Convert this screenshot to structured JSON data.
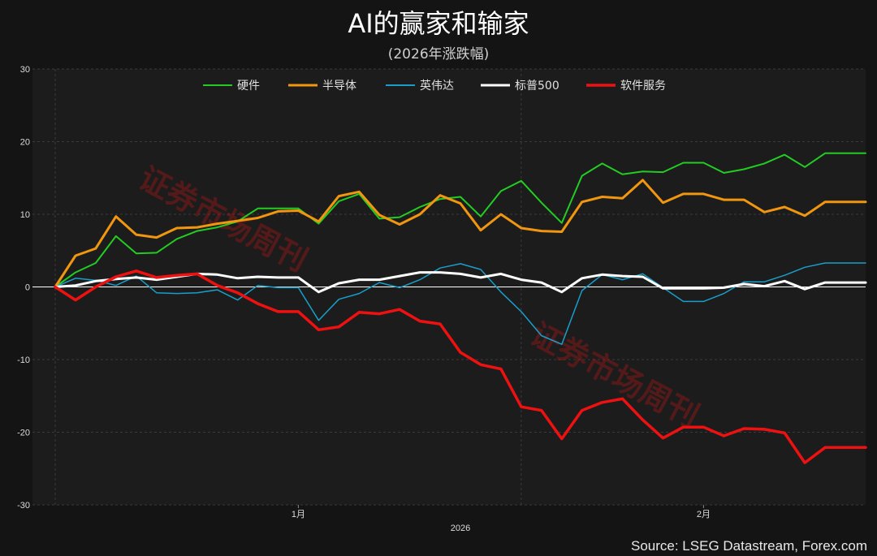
{
  "header": {
    "title": "AI的赢家和输家",
    "subtitle": "(2026年涨跌幅)"
  },
  "source": "Source: LSEG Datastream, Forex.com",
  "watermark": "证券市场周刊",
  "chart_data": {
    "type": "line",
    "title": "AI的赢家和输家",
    "subtitle": "(2026年涨跌幅)",
    "xlabel": "2026",
    "ylabel": "",
    "ylim": [
      -30,
      30
    ],
    "yticks": [
      -30,
      -20,
      -10,
      0,
      10,
      20,
      30
    ],
    "x_ticks": [
      {
        "label": "1月",
        "index": 12
      },
      {
        "label": "2月",
        "index": 32
      }
    ],
    "x_year_label": "2026",
    "grid": true,
    "legend_position": "top",
    "x": [
      0,
      1,
      2,
      3,
      4,
      5,
      6,
      7,
      8,
      9,
      10,
      11,
      12,
      13,
      14,
      15,
      16,
      17,
      18,
      19,
      20,
      21,
      22,
      23,
      24,
      25,
      26,
      27,
      28,
      29,
      30,
      31,
      32,
      33,
      34,
      35,
      36,
      37,
      38,
      39,
      40
    ],
    "series": [
      {
        "name": "硬件",
        "color": "#22cc22",
        "width": 2,
        "values": [
          0,
          2,
          3.3,
          7,
          4.6,
          4.7,
          6.6,
          7.7,
          8.2,
          9,
          10.8,
          10.8,
          10.8,
          8.7,
          11.8,
          12.8,
          9.4,
          9.6,
          11,
          12.1,
          12.4,
          9.7,
          13.2,
          14.6,
          11.6,
          8.8,
          15.3,
          17,
          15.5,
          15.9,
          15.8,
          17.1,
          17.1,
          15.7,
          16.2,
          17,
          18.2,
          16.5,
          18.4,
          18.4,
          18.4
        ]
      },
      {
        "name": "半导体",
        "color": "#f0960f",
        "width": 3,
        "values": [
          0,
          4.3,
          5.3,
          9.7,
          7.2,
          6.8,
          8.1,
          8.2,
          8.7,
          9.1,
          9.5,
          10.4,
          10.5,
          9,
          12.5,
          13.1,
          9.9,
          8.6,
          10,
          12.6,
          11.5,
          7.8,
          10,
          8.1,
          7.7,
          7.6,
          11.7,
          12.4,
          12.2,
          14.7,
          11.6,
          12.8,
          12.8,
          12,
          12,
          10.3,
          11,
          9.8,
          11.7,
          11.7,
          11.7
        ]
      },
      {
        "name": "英伟达",
        "color": "#1a9ec9",
        "width": 1.5,
        "values": [
          0,
          1.2,
          0.9,
          0.2,
          1.5,
          -0.8,
          -0.9,
          -0.8,
          -0.4,
          -1.8,
          0.2,
          -0.1,
          -0.1,
          -4.6,
          -1.7,
          -0.9,
          0.6,
          -0.1,
          1,
          2.6,
          3.2,
          2.4,
          -0.7,
          -3.4,
          -6.7,
          -7.9,
          -0.5,
          1.7,
          1,
          1.8,
          -0.1,
          -2,
          -2,
          -0.9,
          0.7,
          0.7,
          1.6,
          2.7,
          3.3,
          3.3,
          3.3
        ]
      },
      {
        "name": "标普500",
        "color": "#ffffff",
        "width": 3,
        "values": [
          0,
          0.2,
          0.8,
          1.1,
          1.3,
          1,
          1.4,
          1.8,
          1.7,
          1.2,
          1.4,
          1.3,
          1.3,
          -0.7,
          0.5,
          1,
          1,
          1.5,
          2,
          2,
          1.8,
          1.3,
          1.8,
          1,
          0.6,
          -0.7,
          1.2,
          1.7,
          1.5,
          1.4,
          -0.2,
          -0.2,
          -0.2,
          -0.1,
          0.4,
          0.1,
          0.8,
          -0.3,
          0.6,
          0.6,
          0.6
        ]
      },
      {
        "name": "软件服务",
        "color": "#ee1111",
        "width": 3.5,
        "values": [
          0,
          -1.8,
          0,
          1.4,
          2.2,
          1.3,
          1.6,
          1.8,
          0.2,
          -0.8,
          -2.3,
          -3.4,
          -3.4,
          -5.9,
          -5.5,
          -3.5,
          -3.7,
          -3.1,
          -4.7,
          -5.1,
          -9,
          -10.7,
          -11.3,
          -16.5,
          -17,
          -20.9,
          -17,
          -15.9,
          -15.4,
          -18.3,
          -20.8,
          -19.3,
          -19.3,
          -20.5,
          -19.5,
          -19.6,
          -20.1,
          -24.2,
          -22.1,
          -22.1,
          -22.1
        ]
      }
    ]
  }
}
